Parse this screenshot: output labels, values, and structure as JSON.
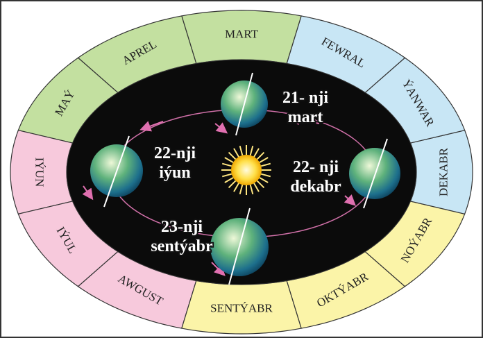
{
  "months": [
    {
      "label": "MART"
    },
    {
      "label": "APREL"
    },
    {
      "label": "MAÝ"
    },
    {
      "label": "IÝUN"
    },
    {
      "label": "IÝUL"
    },
    {
      "label": "AWGUST"
    },
    {
      "label": "SENTÝABR"
    },
    {
      "label": "OKTÝABR"
    },
    {
      "label": "NOÝABR"
    },
    {
      "label": "DEKABR"
    },
    {
      "label": "ÝANWAR"
    },
    {
      "label": "FEWRAL"
    }
  ],
  "positions": [
    {
      "lines": [
        "21- nji",
        "mart"
      ]
    },
    {
      "lines": [
        "22-nji",
        "iýun"
      ]
    },
    {
      "lines": [
        "22- nji",
        "dekabr"
      ]
    },
    {
      "lines": [
        "23-nji",
        "sentýabr"
      ]
    }
  ]
}
